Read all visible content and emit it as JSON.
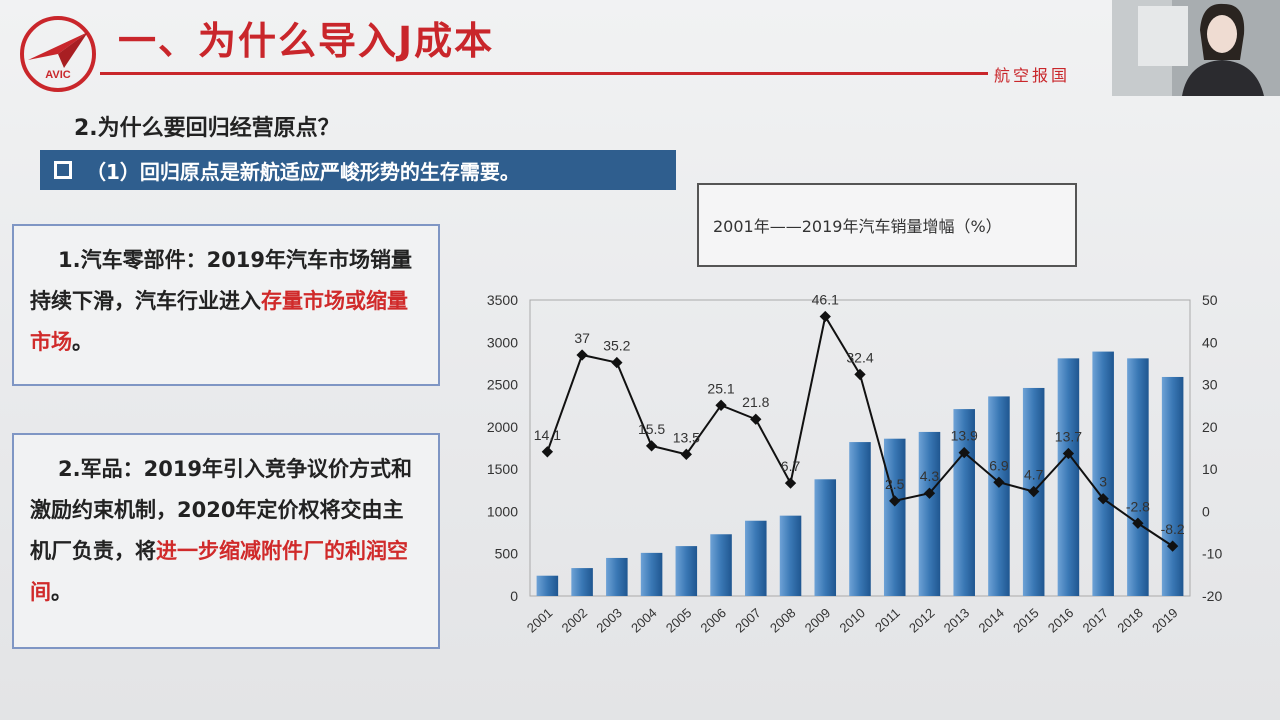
{
  "header": {
    "title": "一、为什么导入J成本",
    "logo_text": "AVIC",
    "slogan": "航空报国"
  },
  "subtitle": "2.为什么要回归经营原点？",
  "banner": {
    "text": "（1）回归原点是新航适应严峻形势的生存需要。"
  },
  "box1": {
    "text_a": "1.汽车零部件：2019年汽车市场销量持续下滑，汽车行业进入",
    "text_red": "存量市场或缩量市场",
    "text_b": "。"
  },
  "box2": {
    "text_a": "2.军品：2019年引入竞争议价方式和激励约束机制，2020年定价权将交由主机厂负责，将",
    "text_red": "进一步缩减附件厂的利润空间",
    "text_b": "。"
  },
  "chart_title": "2001年——2019年汽车销量增幅（%）",
  "colors": {
    "accent_red": "#c9262b",
    "banner_blue": "#2f5e8e",
    "bar_blue": "#3a78b5",
    "box_border": "#7f96c4"
  },
  "chart_data": {
    "type": "bar",
    "title": "2001年——2019年汽车销量增幅（%）",
    "categories": [
      "2001",
      "2002",
      "2003",
      "2004",
      "2005",
      "2006",
      "2007",
      "2008",
      "2009",
      "2010",
      "2011",
      "2012",
      "2013",
      "2014",
      "2015",
      "2016",
      "2017",
      "2018",
      "2019"
    ],
    "series": [
      {
        "type": "bar",
        "axis": "left",
        "values": [
          240,
          330,
          450,
          510,
          590,
          730,
          890,
          950,
          1380,
          1820,
          1860,
          1940,
          2210,
          2360,
          2460,
          2810,
          2890,
          2810,
          2590
        ]
      },
      {
        "type": "line",
        "axis": "right",
        "values": [
          14.1,
          37,
          35.2,
          15.5,
          13.5,
          25.1,
          21.8,
          6.7,
          46.1,
          32.4,
          2.5,
          4.3,
          13.9,
          6.9,
          4.7,
          13.7,
          3,
          -2.8,
          -8.2
        ],
        "labels": [
          "14.1",
          "37",
          "35.2",
          "15.5",
          "13.5",
          "25.1",
          "21.8",
          "6.7",
          "46.1",
          "32.4",
          "2.5",
          "4.3",
          "13.9",
          "6.9",
          "4.7",
          "13.7",
          "3",
          "-2.8",
          "-8.2"
        ]
      }
    ],
    "y_left": {
      "min": 0,
      "max": 3500,
      "ticks": [
        "0",
        "500",
        "1000",
        "1500",
        "2000",
        "2500",
        "3000",
        "3500"
      ]
    },
    "y_right": {
      "min": -20,
      "max": 50,
      "ticks": [
        "-20",
        "-10",
        "0",
        "10",
        "20",
        "30",
        "40",
        "50"
      ]
    },
    "grid": false
  }
}
